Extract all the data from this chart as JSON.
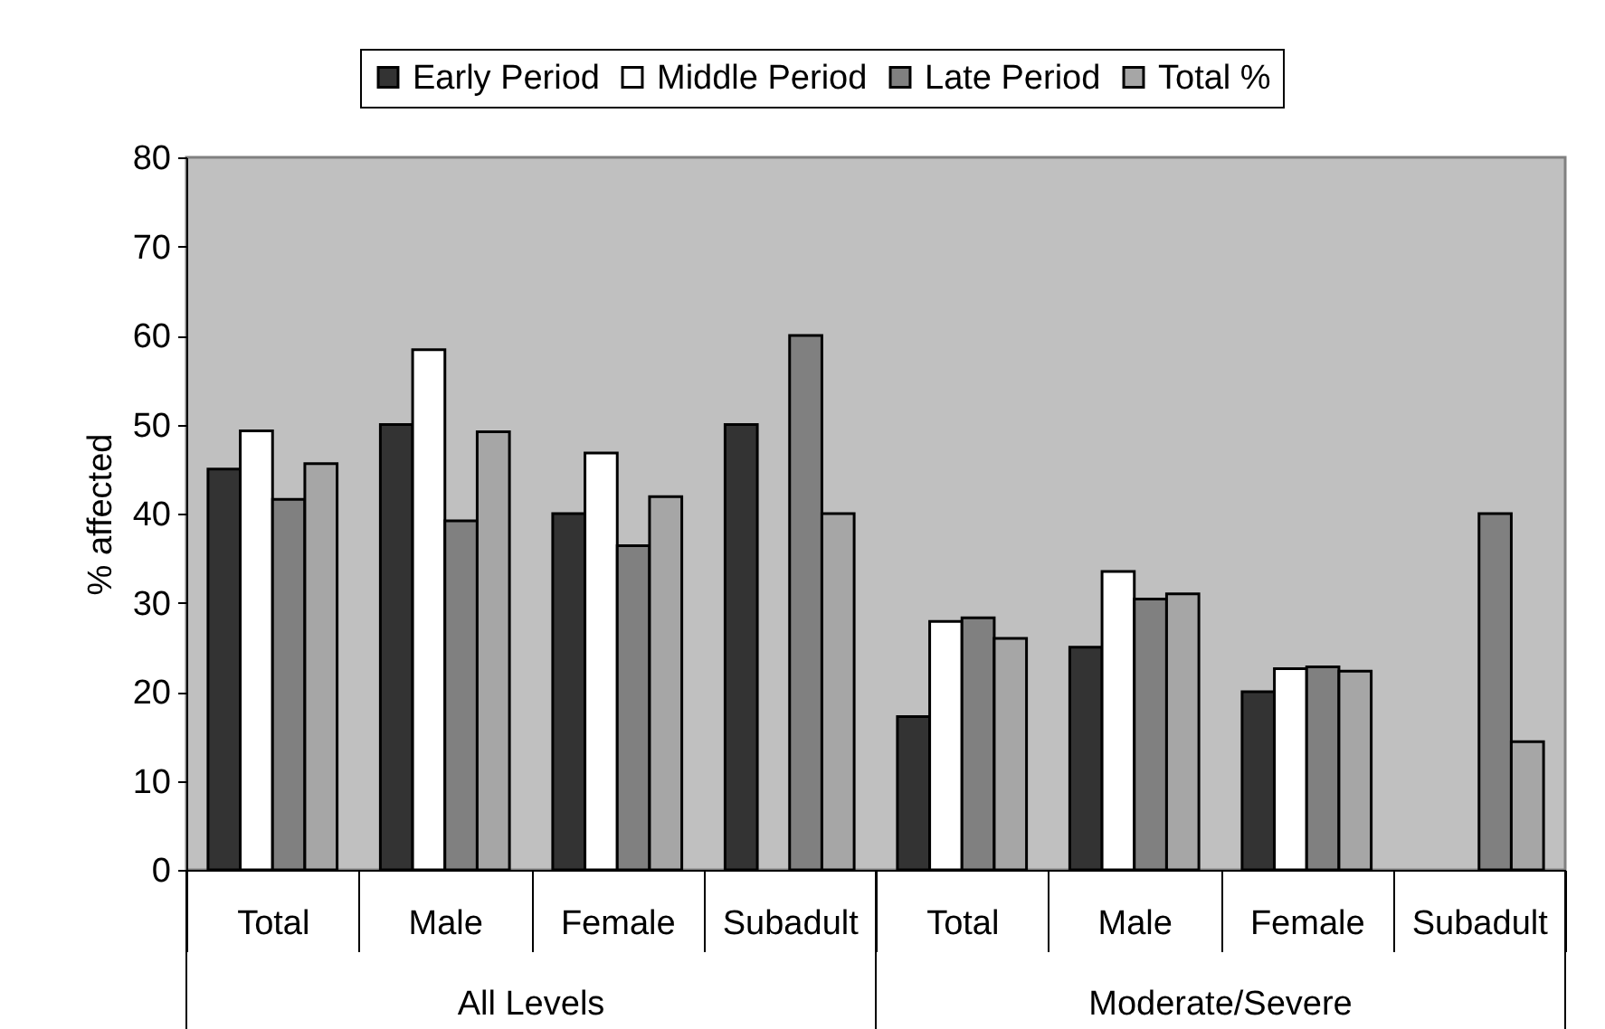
{
  "chart_data": {
    "type": "bar",
    "categories": [
      "Total",
      "Male",
      "Female",
      "Subadult",
      "Total",
      "Male",
      "Female",
      "Subadult"
    ],
    "series": [
      {
        "name": "Early Period",
        "color": "#333333",
        "values": [
          45,
          50,
          40,
          50,
          17.2,
          25,
          20,
          null
        ]
      },
      {
        "name": "Middle Period",
        "color": "#ffffff",
        "values": [
          49.3,
          58.4,
          46.8,
          null,
          27.9,
          33.5,
          22.6,
          null
        ]
      },
      {
        "name": "Late Period",
        "color": "#808080",
        "values": [
          41.6,
          39.2,
          36.4,
          60,
          28.3,
          30.4,
          22.8,
          40
        ]
      },
      {
        "name": "Total %",
        "color": "#a6a6a6",
        "values": [
          45.6,
          49.2,
          41.9,
          40,
          26,
          31,
          22.3,
          14.4
        ]
      }
    ],
    "ylabel": "% affected",
    "ylim": [
      0,
      80
    ],
    "yticks": [
      0,
      10,
      20,
      30,
      40,
      50,
      60,
      70,
      80
    ],
    "legend": "top",
    "annotations": [
      "All Levels",
      "Moderate/Severe"
    ]
  }
}
